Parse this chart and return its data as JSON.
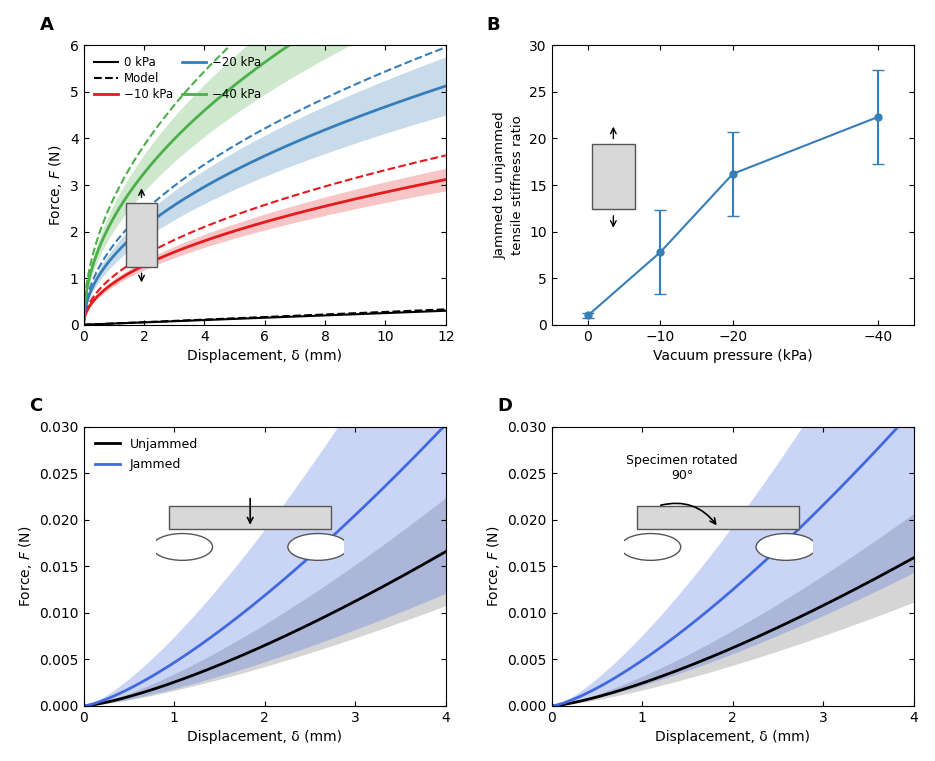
{
  "panel_A": {
    "title": "A",
    "xlabel": "Displacement, δ (mm)",
    "ylabel": "Force, $F$ (N)",
    "xlim": [
      0,
      12
    ],
    "ylim": [
      0,
      6
    ],
    "xticks": [
      0,
      2,
      4,
      6,
      8,
      10,
      12
    ],
    "yticks": [
      0,
      1,
      2,
      3,
      4,
      5,
      6
    ],
    "color_0": "#000000",
    "color_10": "#e41a1c",
    "color_20": "#377eb8",
    "color_40": "#4daf4a"
  },
  "panel_B": {
    "title": "B",
    "xlabel": "Vacuum pressure (kPa)",
    "ylabel": "Jammed to unjammed\ntensile stiffness ratio",
    "xlim": [
      5,
      -45
    ],
    "ylim": [
      0,
      30
    ],
    "xticks": [
      0,
      -10,
      -20,
      -40
    ],
    "yticks": [
      0,
      5,
      10,
      15,
      20,
      25,
      30
    ],
    "x": [
      0,
      -10,
      -20,
      -40
    ],
    "y": [
      1.0,
      7.8,
      16.2,
      22.3
    ],
    "yerr": [
      0.3,
      4.5,
      4.5,
      5.0
    ],
    "color": "#377eb8"
  },
  "panel_C": {
    "title": "C",
    "xlabel": "Displacement, δ (mm)",
    "ylabel": "Force, $F$ (N)",
    "xlim": [
      0,
      4
    ],
    "ylim": [
      0,
      0.03
    ],
    "xticks": [
      0,
      1,
      2,
      3,
      4
    ],
    "yticks": [
      0,
      0.005,
      0.01,
      0.015,
      0.02,
      0.025,
      0.03
    ],
    "ku": 0.00255,
    "nu": 1.35,
    "kj": 0.00465,
    "nj": 1.35,
    "su": 0.35,
    "sj": 0.6,
    "color_u": "#000000",
    "color_j": "#4169e1"
  },
  "panel_D": {
    "title": "D",
    "xlabel": "Displacement, δ (mm)",
    "ylabel": "Force, $F$ (N)",
    "xlim": [
      0,
      4
    ],
    "ylim": [
      0,
      0.03
    ],
    "xticks": [
      0,
      1,
      2,
      3,
      4
    ],
    "yticks": [
      0,
      0.005,
      0.01,
      0.015,
      0.02,
      0.025,
      0.03
    ],
    "ku": 0.00245,
    "nu": 1.35,
    "kj": 0.0049,
    "nj": 1.35,
    "su": 0.3,
    "sj": 0.55,
    "color_u": "#000000",
    "color_j": "#4169e1",
    "annotation": "Specimen rotated\n90°"
  },
  "bg_color": "#ffffff"
}
